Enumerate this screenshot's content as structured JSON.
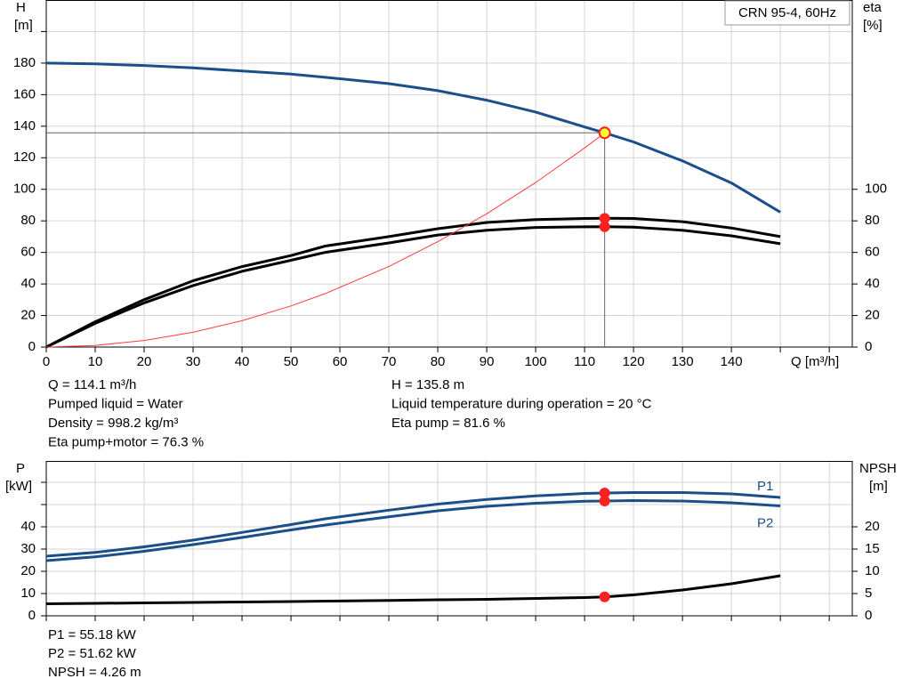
{
  "chart_data": [
    {
      "type": "line",
      "title": "CRN 95-4, 60Hz",
      "xlabel": "Q [m³/h]",
      "ylabel": "H",
      "yunit": "[m]",
      "y2label": "eta",
      "y2unit": "[%]",
      "x": [
        0,
        10,
        20,
        30,
        40,
        50,
        57,
        70,
        80,
        90,
        100,
        110,
        114.1,
        120,
        130,
        140,
        150
      ],
      "series": [
        {
          "color": "#1a4f8a",
          "values": [
            180,
            179.5,
            178.5,
            177,
            175,
            173,
            171,
            167,
            162.5,
            156.5,
            149,
            139.5,
            135.8,
            130,
            118,
            104,
            85.5
          ]
        },
        {
          "color": "#000000",
          "axis": "y2",
          "values": [
            0,
            16,
            30,
            42,
            51,
            58,
            64,
            70,
            75,
            79,
            80.8,
            81.5,
            81.6,
            81.5,
            79.5,
            75.5,
            70
          ]
        },
        {
          "color": "#000000",
          "axis": "y2",
          "values": [
            0,
            15,
            28,
            39,
            48,
            55,
            60,
            66,
            71,
            74,
            75.8,
            76.2,
            76.3,
            76,
            74,
            70.5,
            65.5
          ]
        },
        {
          "color": "#ff3b3b",
          "values": [
            0,
            1.04,
            4.17,
            9.39,
            16.69,
            26.08,
            33.9,
            51.1,
            66.8,
            84.5,
            104.3,
            126.2,
            135.8,
            null,
            null,
            null,
            null
          ]
        }
      ],
      "duty_point_q": 114.1,
      "xlim": [
        0,
        164.7
      ],
      "xticks": [
        0,
        10,
        20,
        30,
        40,
        50,
        60,
        70,
        80,
        90,
        100,
        110,
        120,
        130,
        140
      ],
      "extra_grid_x": [
        150,
        160
      ],
      "ylim": [
        0,
        220
      ],
      "yticks": [
        0,
        20,
        40,
        60,
        80,
        100,
        120,
        140,
        160,
        180
      ],
      "extra_grid_y": [
        200
      ],
      "y2lim": [
        0,
        220
      ],
      "y2ticks": [
        0,
        20,
        40,
        60,
        80,
        100
      ],
      "grid": true,
      "notes_left": [
        "Q = 114.1 m³/h",
        "Pumped liquid = Water",
        "Density = 998.2 kg/m³",
        "Eta pump+motor = 76.3 %"
      ],
      "notes_right": [
        "H = 135.8 m",
        "Liquid temperature during operation = 20 °C",
        "Eta pump = 81.6 %"
      ]
    },
    {
      "type": "line",
      "ylabel": "P",
      "yunit": "[kW]",
      "y2label": "NPSH",
      "y2unit": "[m]",
      "x": [
        0,
        10,
        20,
        30,
        40,
        50,
        57,
        70,
        80,
        90,
        100,
        110,
        114.1,
        120,
        130,
        140,
        150
      ],
      "series": [
        {
          "name": "P1",
          "color": "#1a4f8a",
          "values": [
            26.8,
            28.5,
            31,
            34,
            37.5,
            41,
            43.6,
            47.5,
            50.2,
            52.3,
            53.9,
            55,
            55.18,
            55.4,
            55.4,
            54.8,
            53.2
          ]
        },
        {
          "name": "P2",
          "color": "#1a4f8a",
          "values": [
            24.8,
            26.5,
            29,
            32,
            35.2,
            38.6,
            40.8,
            44.5,
            47.2,
            49.2,
            50.6,
            51.5,
            51.62,
            51.8,
            51.6,
            50.8,
            49.4
          ]
        },
        {
          "color": "#000000",
          "axis": "y2",
          "values": [
            2.7,
            2.8,
            2.9,
            3.0,
            3.1,
            3.2,
            3.3,
            3.45,
            3.6,
            3.7,
            3.9,
            4.1,
            4.26,
            4.7,
            5.8,
            7.2,
            9.0
          ]
        }
      ],
      "duty_point_q": 114.1,
      "xlim": [
        0,
        164.7
      ],
      "xticks": [
        0,
        10,
        20,
        30,
        40,
        50,
        60,
        70,
        80,
        90,
        100,
        110,
        120,
        130,
        140
      ],
      "extra_grid_x": [
        150,
        160
      ],
      "ylim": [
        0,
        69.6
      ],
      "yticks": [
        0,
        10,
        20,
        30,
        40
      ],
      "extra_grid_y": [
        50,
        60
      ],
      "y2lim": [
        0,
        34.8
      ],
      "y2ticks": [
        0,
        5,
        10,
        15,
        20
      ],
      "grid": true,
      "notes_left": [
        "P1 = 55.18 kW",
        "P2 = 51.62 kW",
        "NPSH = 4.26 m"
      ]
    }
  ]
}
